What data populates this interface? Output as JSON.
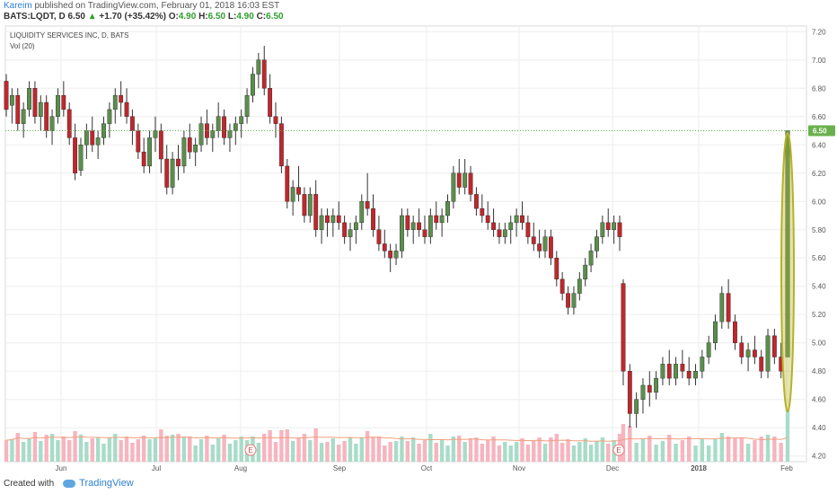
{
  "header": {
    "author": "Kareim",
    "published_text": "published on TradingView.com, February 01, 2018 16:03 EST",
    "symbol": "BATS:LQDT, D",
    "last": "6.50",
    "change_arrow": "▲",
    "change": "+1.70 (+35.42%)",
    "o_label": "O:",
    "o_value": "4.90",
    "h_label": "H:",
    "h_value": "6.50",
    "l_label": "L:",
    "l_value": "4.90",
    "c_label": "C:",
    "c_value": "6.50"
  },
  "legend": {
    "name": "LIQUIDITY SERVICES INC, D, BATS",
    "volume": "Vol (20)"
  },
  "footer": {
    "created_with": "Created with",
    "brand": "TradingView"
  },
  "colors": {
    "up": "#5b8e4d",
    "down": "#c0272d",
    "vol_up": "#a8dcc8",
    "vol_down": "#f6b5bf",
    "price_line": "#6ab04c",
    "ellipse": "#b5b227",
    "vol_ma": "#f2a07f",
    "grid": "#eeeeee",
    "axis_text": "#555555"
  },
  "chart_data": {
    "type": "candlestick",
    "title": "LIQUIDITY SERVICES INC, D, BATS",
    "y_ticks": [
      "4.20",
      "4.40",
      "4.60",
      "4.80",
      "5.00",
      "5.20",
      "5.40",
      "5.60",
      "5.80",
      "6.00",
      "6.20",
      "6.40",
      "6.60",
      "6.80",
      "7.00",
      "7.20"
    ],
    "ylim": [
      4.16,
      7.24
    ],
    "x_ticks": [
      "Jun",
      "Jul",
      "Aug",
      "Sep",
      "Oct",
      "Nov",
      "Dec",
      "2018",
      "Feb"
    ],
    "current_price_label": "6.50",
    "earnings_markers": [
      "E",
      "E"
    ],
    "series": [
      {
        "name": "LQDT",
        "ohlc": [
          [
            6.85,
            6.9,
            6.6,
            6.65
          ],
          [
            6.68,
            6.8,
            6.55,
            6.75
          ],
          [
            6.75,
            6.8,
            6.5,
            6.55
          ],
          [
            6.55,
            6.7,
            6.45,
            6.65
          ],
          [
            6.65,
            6.85,
            6.6,
            6.8
          ],
          [
            6.8,
            6.85,
            6.55,
            6.6
          ],
          [
            6.6,
            6.75,
            6.5,
            6.7
          ],
          [
            6.7,
            6.75,
            6.45,
            6.5
          ],
          [
            6.5,
            6.65,
            6.4,
            6.6
          ],
          [
            6.6,
            6.8,
            6.55,
            6.75
          ],
          [
            6.75,
            6.85,
            6.6,
            6.65
          ],
          [
            6.65,
            6.7,
            6.4,
            6.45
          ],
          [
            6.45,
            6.55,
            6.15,
            6.2
          ],
          [
            6.22,
            6.45,
            6.18,
            6.4
          ],
          [
            6.4,
            6.55,
            6.3,
            6.5
          ],
          [
            6.5,
            6.6,
            6.35,
            6.4
          ],
          [
            6.4,
            6.5,
            6.3,
            6.45
          ],
          [
            6.45,
            6.6,
            6.4,
            6.55
          ],
          [
            6.55,
            6.7,
            6.45,
            6.65
          ],
          [
            6.65,
            6.8,
            6.55,
            6.75
          ],
          [
            6.75,
            6.85,
            6.6,
            6.7
          ],
          [
            6.7,
            6.8,
            6.55,
            6.6
          ],
          [
            6.6,
            6.65,
            6.4,
            6.5
          ],
          [
            6.5,
            6.55,
            6.3,
            6.35
          ],
          [
            6.35,
            6.45,
            6.2,
            6.25
          ],
          [
            6.25,
            6.5,
            6.2,
            6.45
          ],
          [
            6.45,
            6.6,
            6.35,
            6.5
          ],
          [
            6.5,
            6.55,
            6.2,
            6.3
          ],
          [
            6.3,
            6.4,
            6.05,
            6.1
          ],
          [
            6.1,
            6.35,
            6.05,
            6.3
          ],
          [
            6.3,
            6.4,
            6.15,
            6.25
          ],
          [
            6.25,
            6.5,
            6.2,
            6.45
          ],
          [
            6.45,
            6.55,
            6.3,
            6.35
          ],
          [
            6.35,
            6.45,
            6.25,
            6.4
          ],
          [
            6.4,
            6.6,
            6.35,
            6.55
          ],
          [
            6.55,
            6.65,
            6.4,
            6.45
          ],
          [
            6.45,
            6.55,
            6.35,
            6.5
          ],
          [
            6.5,
            6.7,
            6.45,
            6.6
          ],
          [
            6.6,
            6.65,
            6.4,
            6.45
          ],
          [
            6.45,
            6.55,
            6.35,
            6.5
          ],
          [
            6.5,
            6.6,
            6.4,
            6.55
          ],
          [
            6.55,
            6.65,
            6.45,
            6.6
          ],
          [
            6.6,
            6.8,
            6.55,
            6.75
          ],
          [
            6.75,
            6.95,
            6.7,
            6.9
          ],
          [
            6.9,
            7.05,
            6.8,
            7.0
          ],
          [
            7.0,
            7.1,
            6.75,
            6.8
          ],
          [
            6.8,
            6.9,
            6.55,
            6.6
          ],
          [
            6.6,
            6.7,
            6.45,
            6.55
          ],
          [
            6.55,
            6.6,
            6.2,
            6.25
          ],
          [
            6.25,
            6.3,
            5.95,
            6.0
          ],
          [
            6.0,
            6.15,
            5.9,
            6.1
          ],
          [
            6.1,
            6.25,
            6.0,
            6.05
          ],
          [
            6.05,
            6.1,
            5.85,
            5.9
          ],
          [
            5.9,
            6.1,
            5.85,
            6.05
          ],
          [
            6.05,
            6.15,
            5.75,
            5.8
          ],
          [
            5.8,
            5.95,
            5.7,
            5.9
          ],
          [
            5.9,
            5.95,
            5.75,
            5.85
          ],
          [
            5.85,
            5.95,
            5.75,
            5.9
          ],
          [
            5.9,
            6.0,
            5.8,
            5.85
          ],
          [
            5.85,
            5.9,
            5.7,
            5.75
          ],
          [
            5.75,
            5.85,
            5.65,
            5.8
          ],
          [
            5.8,
            5.9,
            5.7,
            5.85
          ],
          [
            5.85,
            6.05,
            5.8,
            6.0
          ],
          [
            6.0,
            6.2,
            5.9,
            5.95
          ],
          [
            5.95,
            6.05,
            5.75,
            5.8
          ],
          [
            5.8,
            5.9,
            5.65,
            5.7
          ],
          [
            5.7,
            5.8,
            5.6,
            5.65
          ],
          [
            5.65,
            5.7,
            5.5,
            5.6
          ],
          [
            5.6,
            5.7,
            5.55,
            5.65
          ],
          [
            5.65,
            5.95,
            5.6,
            5.9
          ],
          [
            5.9,
            5.95,
            5.75,
            5.8
          ],
          [
            5.8,
            5.9,
            5.7,
            5.85
          ],
          [
            5.85,
            5.95,
            5.75,
            5.8
          ],
          [
            5.8,
            5.9,
            5.7,
            5.75
          ],
          [
            5.75,
            5.95,
            5.7,
            5.9
          ],
          [
            5.9,
            6.0,
            5.8,
            5.85
          ],
          [
            5.85,
            5.95,
            5.75,
            5.9
          ],
          [
            5.9,
            6.05,
            5.85,
            6.0
          ],
          [
            6.0,
            6.25,
            5.95,
            6.2
          ],
          [
            6.2,
            6.3,
            6.05,
            6.1
          ],
          [
            6.1,
            6.3,
            6.05,
            6.2
          ],
          [
            6.2,
            6.25,
            6.0,
            6.05
          ],
          [
            6.05,
            6.1,
            5.9,
            5.95
          ],
          [
            5.95,
            6.05,
            5.85,
            5.9
          ],
          [
            5.9,
            6.0,
            5.8,
            5.85
          ],
          [
            5.85,
            5.95,
            5.75,
            5.8
          ],
          [
            5.8,
            5.85,
            5.7,
            5.75
          ],
          [
            5.75,
            5.85,
            5.7,
            5.8
          ],
          [
            5.8,
            5.9,
            5.7,
            5.85
          ],
          [
            5.85,
            5.95,
            5.75,
            5.9
          ],
          [
            5.9,
            6.0,
            5.8,
            5.85
          ],
          [
            5.85,
            5.9,
            5.7,
            5.75
          ],
          [
            5.75,
            5.85,
            5.65,
            5.7
          ],
          [
            5.7,
            5.8,
            5.6,
            5.65
          ],
          [
            5.65,
            5.8,
            5.6,
            5.75
          ],
          [
            5.75,
            5.8,
            5.55,
            5.6
          ],
          [
            5.6,
            5.65,
            5.4,
            5.45
          ],
          [
            5.45,
            5.5,
            5.3,
            5.35
          ],
          [
            5.35,
            5.4,
            5.2,
            5.25
          ],
          [
            5.25,
            5.4,
            5.2,
            5.35
          ],
          [
            5.35,
            5.5,
            5.3,
            5.45
          ],
          [
            5.45,
            5.6,
            5.4,
            5.55
          ],
          [
            5.55,
            5.7,
            5.5,
            5.65
          ],
          [
            5.65,
            5.8,
            5.6,
            5.75
          ],
          [
            5.75,
            5.9,
            5.7,
            5.85
          ],
          [
            5.85,
            5.95,
            5.75,
            5.8
          ],
          [
            5.8,
            5.9,
            5.7,
            5.85
          ],
          [
            5.85,
            5.9,
            5.65,
            5.75
          ],
          [
            5.42,
            5.45,
            4.7,
            4.8
          ],
          [
            4.8,
            4.85,
            4.4,
            4.5
          ],
          [
            4.5,
            4.65,
            4.4,
            4.6
          ],
          [
            4.6,
            4.75,
            4.5,
            4.7
          ],
          [
            4.7,
            4.8,
            4.55,
            4.65
          ],
          [
            4.65,
            4.8,
            4.6,
            4.75
          ],
          [
            4.75,
            4.9,
            4.7,
            4.85
          ],
          [
            4.85,
            4.95,
            4.7,
            4.75
          ],
          [
            4.75,
            4.9,
            4.7,
            4.85
          ],
          [
            4.85,
            4.95,
            4.75,
            4.8
          ],
          [
            4.8,
            4.9,
            4.7,
            4.75
          ],
          [
            4.75,
            4.85,
            4.7,
            4.8
          ],
          [
            4.8,
            4.95,
            4.75,
            4.9
          ],
          [
            4.9,
            5.05,
            4.85,
            5.0
          ],
          [
            5.0,
            5.2,
            4.95,
            5.15
          ],
          [
            5.15,
            5.4,
            5.1,
            5.35
          ],
          [
            5.35,
            5.45,
            5.1,
            5.15
          ],
          [
            5.15,
            5.2,
            4.95,
            5.0
          ],
          [
            5.0,
            5.05,
            4.85,
            4.9
          ],
          [
            4.9,
            5.0,
            4.8,
            4.95
          ],
          [
            4.95,
            5.05,
            4.85,
            4.9
          ],
          [
            4.9,
            4.95,
            4.75,
            4.8
          ],
          [
            4.8,
            5.1,
            4.75,
            5.05
          ],
          [
            5.05,
            5.1,
            4.85,
            4.9
          ],
          [
            4.9,
            5.0,
            4.75,
            4.8
          ],
          [
            4.9,
            6.5,
            4.9,
            6.5
          ]
        ]
      }
    ]
  }
}
